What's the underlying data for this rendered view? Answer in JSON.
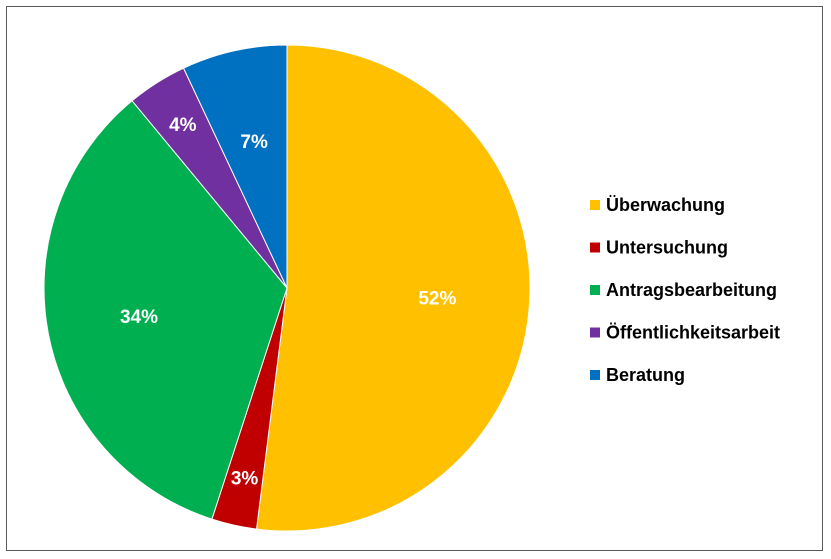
{
  "chart_data": {
    "type": "pie",
    "categories": [
      "Überwachung",
      "Untersuchung",
      "Antragsbearbeitung",
      "Öffentlichkeitsarbeit",
      "Beratung"
    ],
    "values": [
      52,
      3,
      34,
      4,
      7
    ],
    "labels": [
      "52%",
      "3%",
      "34%",
      "4%",
      "7%"
    ],
    "colors": [
      "#FFC000",
      "#C00000",
      "#00B050",
      "#7030A0",
      "#0070C0"
    ],
    "title": "",
    "legend_position": "right"
  }
}
